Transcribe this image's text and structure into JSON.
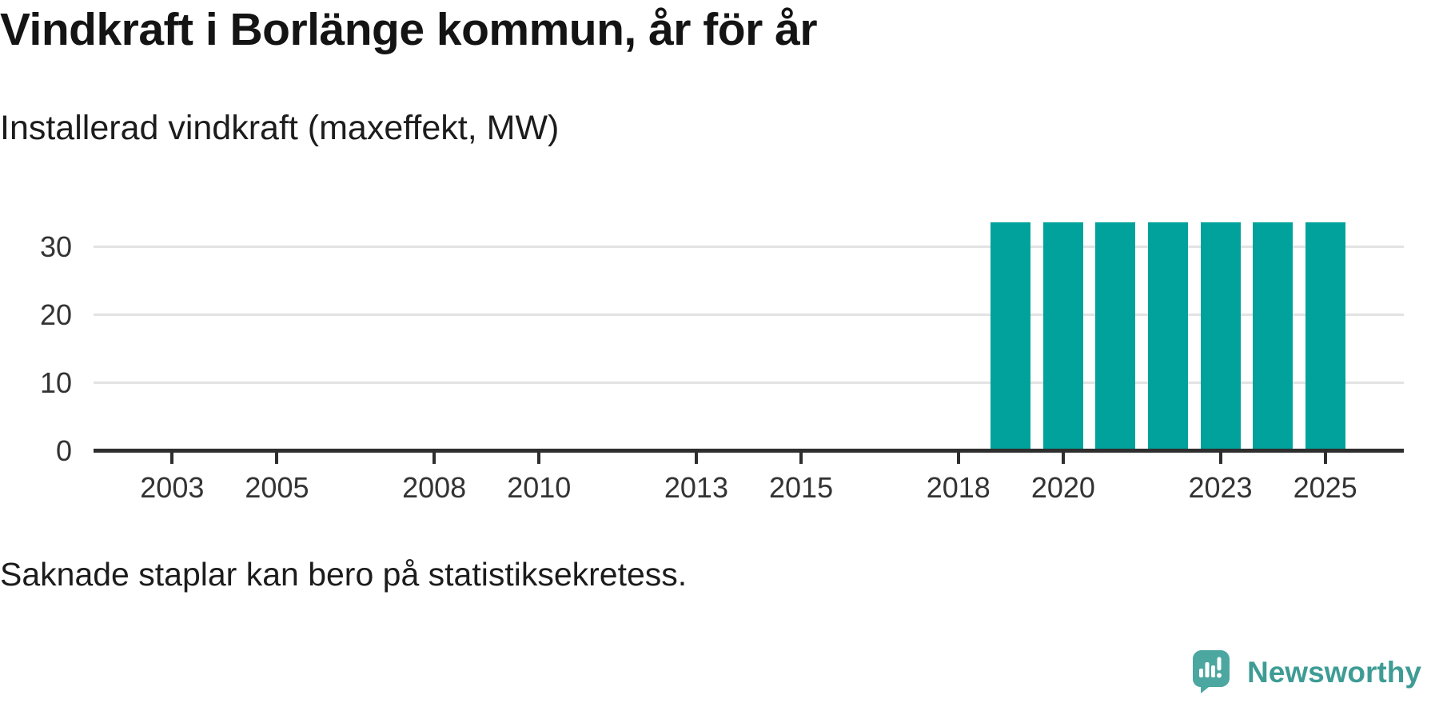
{
  "header": {
    "title": "Vindkraft i Borlänge kommun, år för år",
    "subtitle": "Installerad vindkraft (maxeffekt, MW)"
  },
  "footnote": "Saknade staplar kan bero på statistiksekretess.",
  "branding": {
    "name": "Newsworthy",
    "icon": "newsworthy-speech-bubble-chart-icon",
    "text_color": "#3E9C95",
    "icon_color": "#4BA7A0"
  },
  "colors": {
    "bar": "#00A29B",
    "axis": "#2E2E2E",
    "gridline": "#E3E3E3",
    "tick_label": "#333333",
    "background": "#FFFFFF"
  },
  "chart_data": {
    "type": "bar",
    "title": "Vindkraft i Borlänge kommun, år för år",
    "ylabel": "Installerad vindkraft (maxeffekt, MW)",
    "xlabel": "",
    "categories": [
      2002,
      2003,
      2004,
      2005,
      2006,
      2007,
      2008,
      2009,
      2010,
      2011,
      2012,
      2013,
      2014,
      2015,
      2016,
      2017,
      2018,
      2019,
      2020,
      2021,
      2022,
      2023,
      2024,
      2025,
      2026
    ],
    "values": [
      null,
      null,
      null,
      null,
      null,
      null,
      null,
      null,
      null,
      null,
      null,
      null,
      null,
      null,
      null,
      null,
      null,
      33.3,
      33.3,
      33.3,
      33.3,
      33.3,
      33.3,
      33.3,
      null
    ],
    "x_tick_years": [
      2003,
      2005,
      2008,
      2010,
      2013,
      2015,
      2018,
      2020,
      2023,
      2025
    ],
    "y_ticks": [
      0,
      10,
      20,
      30
    ],
    "ylim": [
      0,
      35
    ],
    "grid": "horizontal",
    "legend": "none"
  }
}
